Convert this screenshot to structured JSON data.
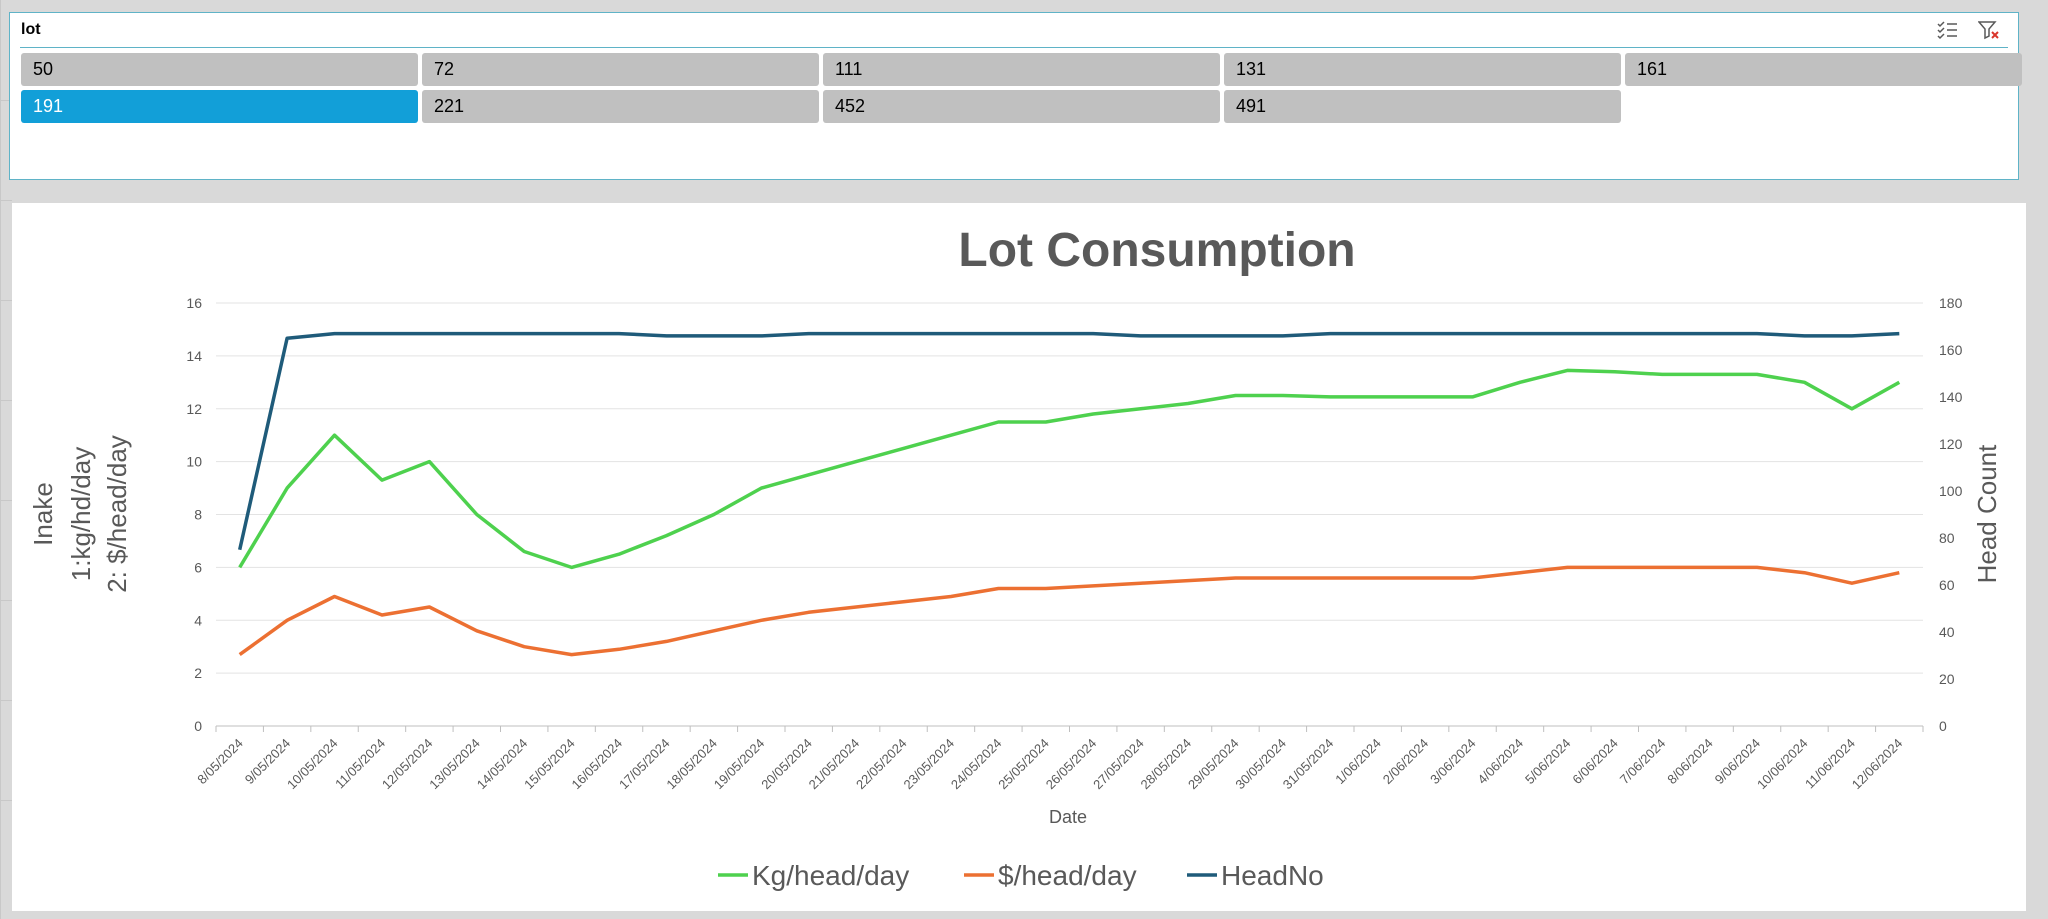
{
  "slicer": {
    "title": "lot",
    "items": [
      {
        "label": "50",
        "selected": false
      },
      {
        "label": "72",
        "selected": false
      },
      {
        "label": "111",
        "selected": false
      },
      {
        "label": "131",
        "selected": false
      },
      {
        "label": "161",
        "selected": false
      },
      {
        "label": "191",
        "selected": true
      },
      {
        "label": "221",
        "selected": false
      },
      {
        "label": "452",
        "selected": false
      },
      {
        "label": "491",
        "selected": false
      }
    ],
    "tools": {
      "multiselect_icon": "multi-select-icon",
      "clear_filter_icon": "clear-filter-icon"
    },
    "colors": {
      "selected": "#129fd8",
      "unselected": "#c0c0c0",
      "border": "#5fb3c7"
    }
  },
  "chart_data": {
    "type": "line",
    "title": "Lot Consumption",
    "xlabel": "Date",
    "ylabel_lines": [
      "Inake",
      "1:kg/hd/day",
      "2: $/head/day"
    ],
    "y2label": "Head Count",
    "ylim": [
      0,
      16
    ],
    "yticks": [
      0,
      2,
      4,
      6,
      8,
      10,
      12,
      14,
      16
    ],
    "y2lim": [
      0,
      180
    ],
    "y2ticks": [
      0,
      20,
      40,
      60,
      80,
      100,
      120,
      140,
      160,
      180
    ],
    "grid": true,
    "legend_position": "bottom",
    "categories": [
      "8/05/2024",
      "9/05/2024",
      "10/05/2024",
      "11/05/2024",
      "12/05/2024",
      "13/05/2024",
      "14/05/2024",
      "15/05/2024",
      "16/05/2024",
      "17/05/2024",
      "18/05/2024",
      "19/05/2024",
      "20/05/2024",
      "21/05/2024",
      "22/05/2024",
      "23/05/2024",
      "24/05/2024",
      "25/05/2024",
      "26/05/2024",
      "27/05/2024",
      "28/05/2024",
      "29/05/2024",
      "30/05/2024",
      "31/05/2024",
      "1/06/2024",
      "2/06/2024",
      "3/06/2024",
      "4/06/2024",
      "5/06/2024",
      "6/06/2024",
      "7/06/2024",
      "8/06/2024",
      "9/06/2024",
      "10/06/2024",
      "11/06/2024",
      "12/06/2024"
    ],
    "series": [
      {
        "name": "Kg/head/day",
        "axis": "left",
        "color": "#4ed14e",
        "values": [
          6,
          9,
          11,
          9.3,
          10,
          8,
          6.6,
          6,
          6.5,
          7.2,
          8,
          9,
          9.5,
          10,
          10.5,
          11,
          11.5,
          11.5,
          11.8,
          12,
          12.2,
          12.5,
          12.5,
          12.45,
          12.45,
          12.45,
          12.45,
          13,
          13.45,
          13.4,
          13.3,
          13.3,
          13.3,
          13,
          12,
          13
        ]
      },
      {
        "name": "$/head/day",
        "axis": "left",
        "color": "#ec7032",
        "values": [
          2.7,
          4,
          4.9,
          4.2,
          4.5,
          3.6,
          3,
          2.7,
          2.9,
          3.2,
          3.6,
          4,
          4.3,
          4.5,
          4.7,
          4.9,
          5.2,
          5.2,
          5.3,
          5.4,
          5.5,
          5.6,
          5.6,
          5.6,
          5.6,
          5.6,
          5.6,
          5.8,
          6,
          6,
          6,
          6,
          6,
          5.8,
          5.4,
          5.8
        ]
      },
      {
        "name": "HeadNo",
        "axis": "right",
        "color": "#1f5b7a",
        "values": [
          75,
          165,
          167,
          167,
          167,
          167,
          167,
          167,
          167,
          166,
          166,
          166,
          167,
          167,
          167,
          167,
          167,
          167,
          167,
          166,
          166,
          166,
          166,
          167,
          167,
          167,
          167,
          167,
          167,
          167,
          167,
          167,
          167,
          166,
          166,
          167
        ]
      }
    ]
  }
}
